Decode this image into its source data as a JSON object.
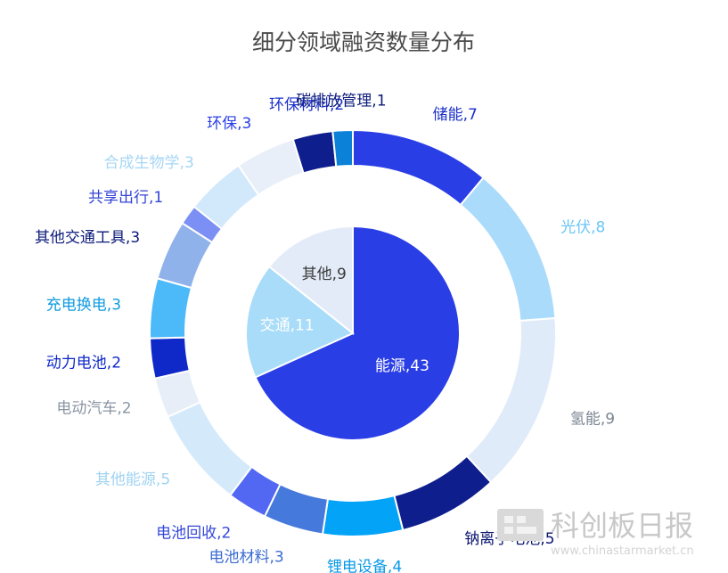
{
  "chart_data": {
    "type": "pie",
    "title": "细分领域融资数量分布",
    "inner": {
      "slices": [
        {
          "label": "能源",
          "value": 43,
          "color": "#2a3ee6",
          "text_color": "#ffffff"
        },
        {
          "label": "交通",
          "value": 11,
          "color": "#a8dcf8",
          "text_color": "#ffffff"
        },
        {
          "label": "其他",
          "value": 9,
          "color": "#e3ebf8",
          "text_color": "#3a3a3a"
        }
      ]
    },
    "outer": {
      "slices": [
        {
          "label": "储能",
          "value": 7,
          "color": "#2a3ee6",
          "label_color": "#1b2fc9"
        },
        {
          "label": "光伏",
          "value": 8,
          "color": "#aadbfb",
          "label_color": "#6cc6f6"
        },
        {
          "label": "氢能",
          "value": 9,
          "color": "#e0ebf9",
          "label_color": "#7a8591"
        },
        {
          "label": "钠离子电池",
          "value": 5,
          "color": "#0e1e8c",
          "label_color": "#0b1670"
        },
        {
          "label": "锂电设备",
          "value": 4,
          "color": "#03a3f8",
          "label_color": "#0798e6"
        },
        {
          "label": "电池材料",
          "value": 3,
          "color": "#4579db",
          "label_color": "#3b6bd0"
        },
        {
          "label": "电池回收",
          "value": 2,
          "color": "#5268f2",
          "label_color": "#3448d8"
        },
        {
          "label": "其他能源",
          "value": 5,
          "color": "#d4eafb",
          "label_color": "#9fd3f2"
        },
        {
          "label": "电动汽车",
          "value": 2,
          "color": "#e7eef8",
          "label_color": "#8a95a2"
        },
        {
          "label": "动力电池",
          "value": 2,
          "color": "#0f28c8",
          "label_color": "#0f28c8"
        },
        {
          "label": "充电换电",
          "value": 3,
          "color": "#4cb9f8",
          "label_color": "#0f9ae0"
        },
        {
          "label": "其他交通工具",
          "value": 3,
          "color": "#90b2ea",
          "label_color": "#0b1a7a"
        },
        {
          "label": "共享出行",
          "value": 1,
          "color": "#7b8ff5",
          "label_color": "#3444d6"
        },
        {
          "label": "合成生物学",
          "value": 3,
          "color": "#d2e8fb",
          "label_color": "#a6d6f5"
        },
        {
          "label": "环保",
          "value": 3,
          "color": "#e8eff9",
          "label_color": "#2a3ee6"
        },
        {
          "label": "环保材料",
          "value": 2,
          "color": "#0e1e8c",
          "label_color": "#1b2fc9"
        },
        {
          "label": "碳排放管理",
          "value": 1,
          "color": "#0b82d8",
          "label_color": "#0b1a7a"
        }
      ]
    }
  },
  "watermark": {
    "brand": "科创板日报",
    "site": "www.chinastarmarket.cn"
  }
}
